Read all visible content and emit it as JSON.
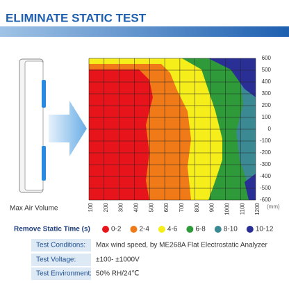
{
  "header": {
    "title": "ELIMINATE STATIC TEST"
  },
  "side_label": "Max Air Volume",
  "chart": {
    "x_ticks": [
      100,
      200,
      300,
      400,
      500,
      600,
      700,
      800,
      900,
      1000,
      1100,
      1200
    ],
    "unit": "(mm)",
    "y_ticks": [
      600,
      500,
      400,
      300,
      200,
      100,
      0,
      -100,
      -200,
      -300,
      -400,
      -500,
      -600
    ]
  },
  "legend": {
    "title": "Remove Static Time (s)",
    "items": [
      {
        "label": "0-2",
        "color": "#e8141b"
      },
      {
        "label": "2-4",
        "color": "#f07a17"
      },
      {
        "label": "4-6",
        "color": "#f6ee1a"
      },
      {
        "label": "6-8",
        "color": "#2e9a3a"
      },
      {
        "label": "8-10",
        "color": "#3b8a93"
      },
      {
        "label": "10-12",
        "color": "#2a2f96"
      }
    ]
  },
  "table": {
    "rows": [
      [
        "Test Conditions:",
        "Max wind speed, by ME268A Flat Electrostatic Analyzer"
      ],
      [
        "Test Voltage:",
        "±100- ±1000V"
      ],
      [
        "Test Environment:",
        "50% RH/24℃"
      ]
    ]
  }
}
